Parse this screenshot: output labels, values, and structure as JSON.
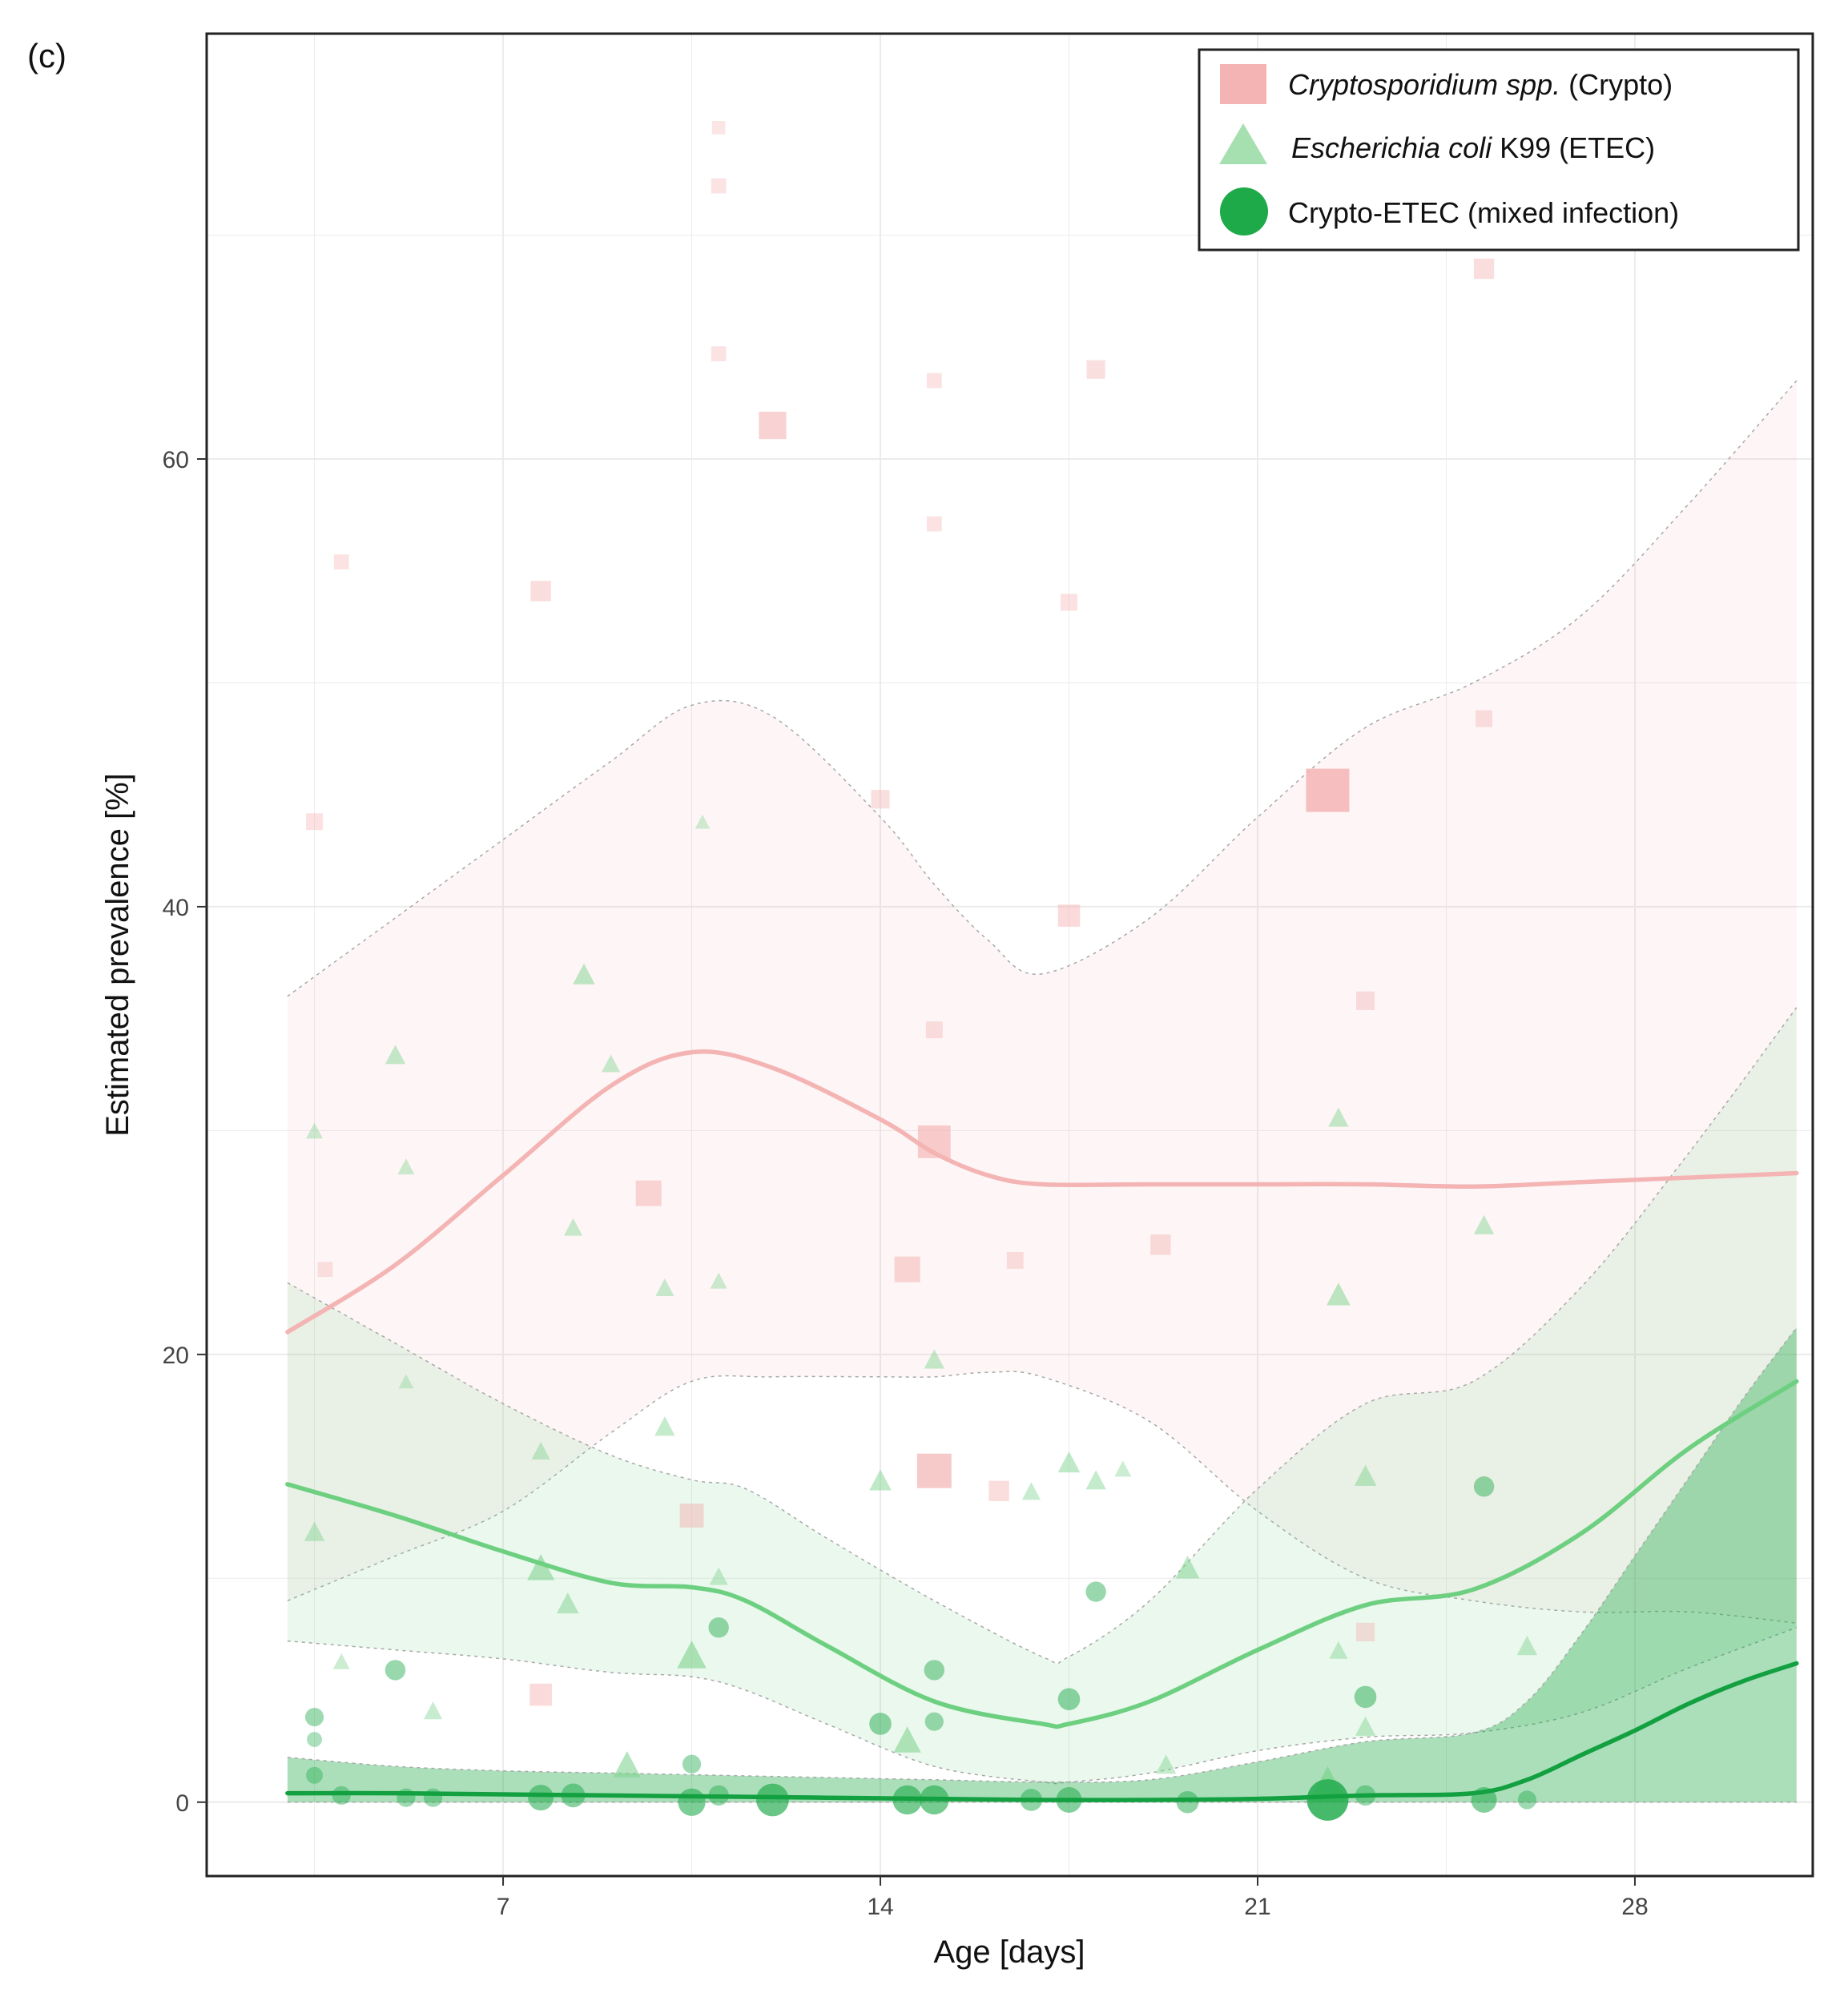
{
  "panel_label": "(c)",
  "chart_data": {
    "type": "line",
    "xlabel": "Age [days]",
    "ylabel": "Estimated prevalence [%]",
    "xlim": [
      1.5,
      31.3
    ],
    "ylim": [
      -3.3,
      79
    ],
    "x_ticks": [
      7,
      14,
      21,
      28
    ],
    "y_ticks": [
      0,
      20,
      40,
      60
    ],
    "grid": true,
    "legend_position": "top-right",
    "colors": {
      "crypto": "#f4b4b4",
      "etec": "#7fd38f",
      "mixed": "#1faa4a"
    },
    "series": [
      {
        "key": "crypto",
        "name_italic": "Cryptosporidium spp.",
        "name_rest": " (Crypto)",
        "marker": "square",
        "fit_x": [
          3,
          5,
          7,
          9,
          10.5,
          12,
          14,
          15,
          16,
          17,
          19,
          21,
          23,
          25,
          27,
          29,
          31
        ],
        "fit_y": [
          21,
          24,
          28,
          32,
          33.5,
          32.8,
          30.5,
          29,
          28,
          27.6,
          27.6,
          27.6,
          27.6,
          27.5,
          27.7,
          27.9,
          28.1
        ],
        "ci_upper": [
          36,
          39.5,
          43,
          46.5,
          49,
          48.5,
          44,
          41,
          38.5,
          37,
          39.5,
          44,
          48,
          50,
          53,
          58,
          63.5
        ],
        "ci_lower": [
          9,
          11,
          13,
          16.5,
          18.8,
          19,
          19,
          19,
          19.2,
          19,
          17,
          13,
          10,
          9,
          8.5,
          8.5,
          8
        ],
        "points": [
          {
            "x": 3.5,
            "y": 43.8,
            "s": 0.25
          },
          {
            "x": 3.7,
            "y": 23.8,
            "s": 0.2
          },
          {
            "x": 4,
            "y": 55.4,
            "s": 0.2
          },
          {
            "x": 7.7,
            "y": 54.1,
            "s": 0.35
          },
          {
            "x": 9.7,
            "y": 27.2,
            "s": 0.5
          },
          {
            "x": 10.5,
            "y": 12.8,
            "s": 0.45
          },
          {
            "x": 7.7,
            "y": 4.8,
            "s": 0.4
          },
          {
            "x": 11,
            "y": 64.7,
            "s": 0.2
          },
          {
            "x": 11,
            "y": 72.2,
            "s": 0.2
          },
          {
            "x": 11,
            "y": 74.8,
            "s": 0.15
          },
          {
            "x": 12,
            "y": 61.5,
            "s": 0.55
          },
          {
            "x": 14,
            "y": 44.8,
            "s": 0.3
          },
          {
            "x": 14.5,
            "y": 23.8,
            "s": 0.5
          },
          {
            "x": 15,
            "y": 29.5,
            "s": 0.7
          },
          {
            "x": 15,
            "y": 34.5,
            "s": 0.25
          },
          {
            "x": 15,
            "y": 57.1,
            "s": 0.2
          },
          {
            "x": 15,
            "y": 63.5,
            "s": 0.2
          },
          {
            "x": 15,
            "y": 14.8,
            "s": 0.75
          },
          {
            "x": 16.2,
            "y": 13.9,
            "s": 0.35
          },
          {
            "x": 16.5,
            "y": 24.2,
            "s": 0.25
          },
          {
            "x": 17.5,
            "y": 39.6,
            "s": 0.4
          },
          {
            "x": 18,
            "y": 64,
            "s": 0.3
          },
          {
            "x": 17.5,
            "y": 53.6,
            "s": 0.25
          },
          {
            "x": 19.2,
            "y": 24.9,
            "s": 0.35
          },
          {
            "x": 22.3,
            "y": 45.2,
            "s": 1.0
          },
          {
            "x": 23,
            "y": 35.8,
            "s": 0.3
          },
          {
            "x": 23,
            "y": 7.6,
            "s": 0.3
          },
          {
            "x": 25.2,
            "y": 68.5,
            "s": 0.35
          },
          {
            "x": 25.2,
            "y": 48.4,
            "s": 0.25
          }
        ]
      },
      {
        "key": "etec",
        "name_italic": "Escherichia coli",
        "name_rest": " K99 (ETEC)",
        "marker": "triangle",
        "fit_x": [
          3,
          5,
          7,
          9,
          10.5,
          11.5,
          13,
          15,
          17,
          17.5,
          19,
          21,
          23,
          25,
          27,
          29,
          31
        ],
        "fit_y": [
          14.2,
          12.8,
          11.2,
          9.8,
          9.6,
          9,
          7,
          4.5,
          3.5,
          3.5,
          4.5,
          6.8,
          8.8,
          9.5,
          12,
          15.8,
          18.8
        ],
        "ci_upper": [
          23.2,
          20.5,
          17.8,
          15.5,
          14.4,
          14,
          11.8,
          9,
          6.5,
          6.5,
          9,
          14,
          17.8,
          18.8,
          23,
          29,
          35.5
        ],
        "ci_lower": [
          7.2,
          6.8,
          6.4,
          5.8,
          5.6,
          5,
          3.5,
          1.6,
          0.9,
          0.9,
          1.3,
          2.3,
          2.9,
          3.1,
          4,
          6,
          7.8
        ],
        "points": [
          {
            "x": 3.5,
            "y": 30,
            "s": 0.25
          },
          {
            "x": 3.5,
            "y": 12.1,
            "s": 0.35
          },
          {
            "x": 4,
            "y": 6.3,
            "s": 0.25
          },
          {
            "x": 5,
            "y": 33.4,
            "s": 0.35
          },
          {
            "x": 5.2,
            "y": 28.4,
            "s": 0.25
          },
          {
            "x": 5.2,
            "y": 18.8,
            "s": 0.2
          },
          {
            "x": 5.7,
            "y": 4.1,
            "s": 0.3
          },
          {
            "x": 7.7,
            "y": 15.7,
            "s": 0.3
          },
          {
            "x": 7.7,
            "y": 10.5,
            "s": 0.55
          },
          {
            "x": 8.2,
            "y": 8.9,
            "s": 0.4
          },
          {
            "x": 8.3,
            "y": 25.7,
            "s": 0.3
          },
          {
            "x": 8.5,
            "y": 37,
            "s": 0.4
          },
          {
            "x": 9,
            "y": 33,
            "s": 0.3
          },
          {
            "x": 9.3,
            "y": 1.7,
            "s": 0.55
          },
          {
            "x": 10,
            "y": 23,
            "s": 0.3
          },
          {
            "x": 10,
            "y": 16.8,
            "s": 0.35
          },
          {
            "x": 10.5,
            "y": 6.6,
            "s": 0.6
          },
          {
            "x": 10.7,
            "y": 43.8,
            "s": 0.2
          },
          {
            "x": 11,
            "y": 23.3,
            "s": 0.25
          },
          {
            "x": 11,
            "y": 10.1,
            "s": 0.3
          },
          {
            "x": 14,
            "y": 14.4,
            "s": 0.4
          },
          {
            "x": 14.5,
            "y": 2.8,
            "s": 0.55
          },
          {
            "x": 15,
            "y": 19.8,
            "s": 0.35
          },
          {
            "x": 16.8,
            "y": 13.9,
            "s": 0.3
          },
          {
            "x": 17.5,
            "y": 15.2,
            "s": 0.4
          },
          {
            "x": 18,
            "y": 14.4,
            "s": 0.35
          },
          {
            "x": 18.5,
            "y": 14.9,
            "s": 0.25
          },
          {
            "x": 19.3,
            "y": 1.7,
            "s": 0.35
          },
          {
            "x": 19.7,
            "y": 10.5,
            "s": 0.45
          },
          {
            "x": 22.3,
            "y": 0.8,
            "s": 0.85
          },
          {
            "x": 22.5,
            "y": 30.6,
            "s": 0.35
          },
          {
            "x": 22.5,
            "y": 22.7,
            "s": 0.45
          },
          {
            "x": 22.5,
            "y": 6.8,
            "s": 0.3
          },
          {
            "x": 23,
            "y": 14.6,
            "s": 0.4
          },
          {
            "x": 23,
            "y": 3.4,
            "s": 0.35
          },
          {
            "x": 25.2,
            "y": 25.8,
            "s": 0.35
          },
          {
            "x": 26,
            "y": 7,
            "s": 0.35
          }
        ]
      },
      {
        "key": "mixed",
        "name_italic": "",
        "name_rest": "Crypto-ETEC (mixed infection)",
        "marker": "circle",
        "fit_x": [
          3,
          5,
          7,
          9,
          11,
          13,
          15,
          17,
          19,
          21,
          23,
          25,
          26,
          27,
          28,
          29,
          30,
          31
        ],
        "fit_y": [
          0.4,
          0.4,
          0.35,
          0.3,
          0.25,
          0.2,
          0.15,
          0.1,
          0.1,
          0.15,
          0.3,
          0.4,
          1.0,
          2.1,
          3.2,
          4.4,
          5.4,
          6.2
        ],
        "ci_upper": [
          2,
          1.6,
          1.4,
          1.3,
          1.2,
          1.1,
          1,
          0.9,
          1,
          1.8,
          2.7,
          3.1,
          4.5,
          7.5,
          11,
          14.5,
          18,
          21.2
        ],
        "ci_lower": [
          0,
          0,
          0,
          0,
          0,
          0,
          0,
          0,
          0,
          0,
          0,
          0,
          0,
          0,
          0,
          0,
          0,
          0
        ],
        "points": [
          {
            "x": 3.5,
            "y": 3.8,
            "s": 0.3
          },
          {
            "x": 3.5,
            "y": 2.8,
            "s": 0.2
          },
          {
            "x": 3.5,
            "y": 1.2,
            "s": 0.25
          },
          {
            "x": 4,
            "y": 0.3,
            "s": 0.3
          },
          {
            "x": 5,
            "y": 5.9,
            "s": 0.35
          },
          {
            "x": 5.2,
            "y": 0.2,
            "s": 0.3
          },
          {
            "x": 5.7,
            "y": 0.2,
            "s": 0.3
          },
          {
            "x": 7.7,
            "y": 0.2,
            "s": 0.5
          },
          {
            "x": 8.3,
            "y": 0.3,
            "s": 0.45
          },
          {
            "x": 10.5,
            "y": 0,
            "s": 0.55
          },
          {
            "x": 10.5,
            "y": 1.7,
            "s": 0.3
          },
          {
            "x": 11,
            "y": 7.8,
            "s": 0.35
          },
          {
            "x": 11,
            "y": 0.3,
            "s": 0.35
          },
          {
            "x": 12,
            "y": 0.1,
            "s": 0.7
          },
          {
            "x": 14,
            "y": 3.5,
            "s": 0.4
          },
          {
            "x": 14.5,
            "y": 0.1,
            "s": 0.6
          },
          {
            "x": 15,
            "y": 0.1,
            "s": 0.6
          },
          {
            "x": 15,
            "y": 5.9,
            "s": 0.35
          },
          {
            "x": 15,
            "y": 3.6,
            "s": 0.3
          },
          {
            "x": 16.8,
            "y": 0.1,
            "s": 0.4
          },
          {
            "x": 17.5,
            "y": 0.1,
            "s": 0.5
          },
          {
            "x": 17.5,
            "y": 4.6,
            "s": 0.4
          },
          {
            "x": 18,
            "y": 9.4,
            "s": 0.35
          },
          {
            "x": 19.7,
            "y": 0,
            "s": 0.4
          },
          {
            "x": 22.3,
            "y": 0.1,
            "s": 0.95
          },
          {
            "x": 23,
            "y": 4.7,
            "s": 0.4
          },
          {
            "x": 23,
            "y": 0.3,
            "s": 0.35
          },
          {
            "x": 25.2,
            "y": 14.1,
            "s": 0.35
          },
          {
            "x": 25.2,
            "y": 0.1,
            "s": 0.5
          },
          {
            "x": 26,
            "y": 0.1,
            "s": 0.3
          }
        ]
      }
    ]
  }
}
